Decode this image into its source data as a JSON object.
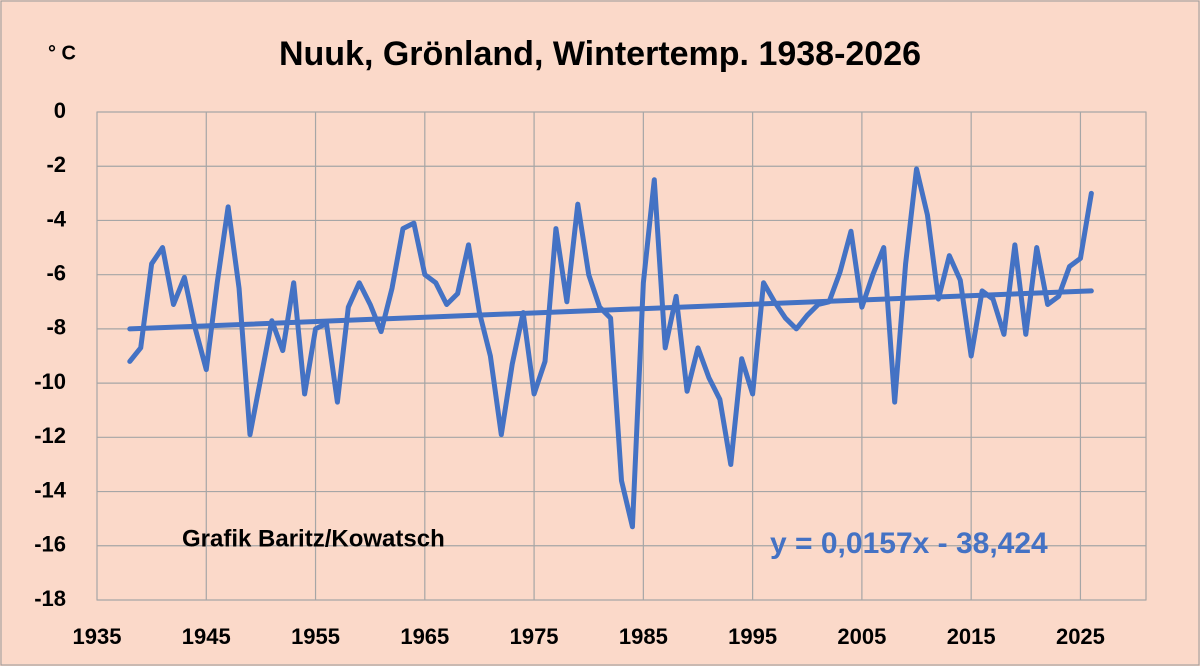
{
  "chart_data": {
    "type": "line",
    "title": "Nuuk, Grönland, Wintertemp. 1938-2026",
    "y_label": "° C",
    "annotation": "Grafik Baritz/Kowatsch",
    "x": [
      1938,
      1939,
      1940,
      1941,
      1942,
      1943,
      1944,
      1945,
      1946,
      1947,
      1948,
      1949,
      1950,
      1951,
      1952,
      1953,
      1954,
      1955,
      1956,
      1957,
      1958,
      1959,
      1960,
      1961,
      1962,
      1963,
      1964,
      1965,
      1966,
      1967,
      1968,
      1969,
      1970,
      1971,
      1972,
      1973,
      1974,
      1975,
      1976,
      1977,
      1978,
      1979,
      1980,
      1981,
      1982,
      1983,
      1984,
      1985,
      1986,
      1987,
      1988,
      1989,
      1990,
      1991,
      1992,
      1993,
      1994,
      1995,
      1996,
      1997,
      1998,
      1999,
      2000,
      2001,
      2002,
      2003,
      2004,
      2005,
      2006,
      2007,
      2008,
      2009,
      2010,
      2011,
      2012,
      2013,
      2014,
      2015,
      2016,
      2017,
      2018,
      2019,
      2020,
      2021,
      2022,
      2023,
      2024,
      2025,
      2026
    ],
    "series": [
      {
        "color": "#4472c4",
        "values": [
          -9.2,
          -8.7,
          -5.6,
          -5.0,
          -7.1,
          -6.1,
          -8.0,
          -9.5,
          -6.3,
          -3.5,
          -6.5,
          -11.9,
          -9.8,
          -7.7,
          -8.8,
          -6.3,
          -10.4,
          -8.0,
          -7.8,
          -10.7,
          -7.2,
          -6.3,
          -7.1,
          -8.1,
          -6.5,
          -4.3,
          -4.1,
          -6.0,
          -6.3,
          -7.1,
          -6.7,
          -4.9,
          -7.4,
          -9.0,
          -11.9,
          -9.3,
          -7.4,
          -10.4,
          -9.2,
          -4.3,
          -7.0,
          -3.4,
          -6.0,
          -7.2,
          -7.6,
          -13.6,
          -15.3,
          -6.3,
          -2.5,
          -8.7,
          -6.8,
          -10.3,
          -8.7,
          -9.8,
          -10.6,
          -13.0,
          -9.1,
          -10.4,
          -6.3,
          -7.0,
          -7.6,
          -8.0,
          -7.5,
          -7.1,
          -7.0,
          -5.9,
          -4.4,
          -7.2,
          -6.0,
          -5.0,
          -10.7,
          -5.6,
          -2.1,
          -3.8,
          -6.9,
          -5.3,
          -6.2,
          -9.0,
          -6.6,
          -6.9,
          -8.2,
          -4.9,
          -8.2,
          -5.0,
          -7.1,
          -6.8,
          -5.7,
          -5.4,
          -3.0
        ]
      }
    ],
    "trendline": {
      "x": [
        1938,
        2026
      ],
      "values": [
        -8.0,
        -6.6
      ],
      "color": "#4472c4",
      "label": "y = 0,0157x - 38,424"
    },
    "xlim": [
      1935,
      2031
    ],
    "xticks": [
      1935,
      1945,
      1955,
      1965,
      1975,
      1985,
      1995,
      2005,
      2015,
      2025
    ],
    "ylim": [
      -18,
      0
    ],
    "yticks": [
      -18,
      -16,
      -14,
      -12,
      -10,
      -8,
      -6,
      -4,
      -2,
      0
    ],
    "grid": true
  }
}
